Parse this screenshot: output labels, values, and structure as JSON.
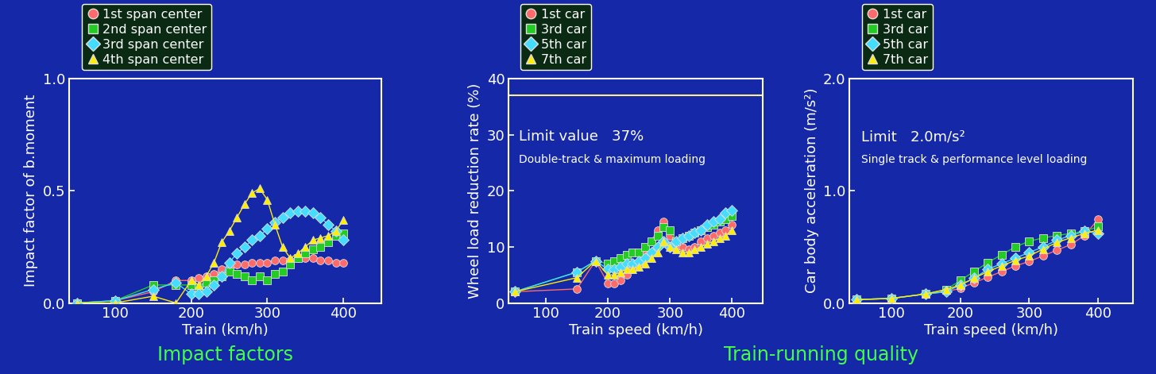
{
  "captions": [
    "Impact factors",
    "Train-running quality"
  ],
  "chart_data": [
    {
      "type": "line",
      "x_label": "Train (km/h)",
      "y_label": "Impact factor of b.moment",
      "x": [
        50,
        100,
        150,
        180,
        200,
        210,
        220,
        230,
        240,
        250,
        260,
        270,
        280,
        290,
        300,
        310,
        320,
        330,
        340,
        350,
        360,
        370,
        380,
        390,
        400
      ],
      "series": [
        {
          "name": "1st span center",
          "color": "#ff6a6a",
          "marker": "circle",
          "values": [
            0,
            0.01,
            0.05,
            0.1,
            0.1,
            0.11,
            0.12,
            0.13,
            0.15,
            0.16,
            0.17,
            0.17,
            0.18,
            0.18,
            0.18,
            0.19,
            0.19,
            0.19,
            0.2,
            0.2,
            0.2,
            0.19,
            0.19,
            0.18,
            0.18
          ]
        },
        {
          "name": "2nd span center",
          "color": "#22cc22",
          "marker": "square",
          "values": [
            0,
            0.01,
            0.08,
            0.08,
            0.08,
            0.07,
            0.09,
            0.1,
            0.12,
            0.14,
            0.13,
            0.12,
            0.1,
            0.12,
            0.1,
            0.13,
            0.14,
            0.17,
            0.2,
            0.22,
            0.24,
            0.25,
            0.27,
            0.3,
            0.31
          ]
        },
        {
          "name": "3rd span center",
          "color": "#44ddff",
          "marker": "diamond",
          "values": [
            0,
            0.01,
            0.06,
            0.09,
            0.04,
            0.04,
            0.05,
            0.08,
            0.12,
            0.18,
            0.22,
            0.25,
            0.28,
            0.3,
            0.33,
            0.36,
            0.38,
            0.4,
            0.41,
            0.41,
            0.4,
            0.38,
            0.35,
            0.32,
            0.28
          ]
        },
        {
          "name": "4th span center",
          "color": "#ffee00",
          "marker": "triangle",
          "values": [
            0,
            0.0,
            0.03,
            0.0,
            0.1,
            0.08,
            0.12,
            0.18,
            0.27,
            0.32,
            0.38,
            0.44,
            0.49,
            0.51,
            0.46,
            0.35,
            0.25,
            0.2,
            0.22,
            0.25,
            0.28,
            0.29,
            0.3,
            0.32,
            0.37
          ]
        }
      ],
      "xlim": [
        40,
        450
      ],
      "ylim": [
        0,
        1.0
      ],
      "xticks": [
        100,
        200,
        300,
        400
      ],
      "yticks": [
        {
          "value": 0,
          "label": "0.0"
        },
        {
          "value": 0.5,
          "label": "0.5"
        },
        {
          "value": 1.0,
          "label": "1.0"
        }
      ],
      "legend": "upper left"
    },
    {
      "type": "line",
      "x_label": "Train speed (km/h)",
      "y_label": "Wheel load reduction rate (%)",
      "x": [
        50,
        150,
        180,
        200,
        210,
        220,
        230,
        240,
        250,
        260,
        270,
        280,
        290,
        300,
        310,
        320,
        330,
        340,
        350,
        360,
        370,
        380,
        390,
        400
      ],
      "series": [
        {
          "name": "1st car",
          "color": "#ff6a6a",
          "marker": "circle",
          "values": [
            2,
            2.5,
            7.5,
            3.5,
            3.5,
            4,
            5,
            6,
            7,
            9,
            11,
            13,
            14.5,
            12,
            10,
            10,
            9.5,
            10,
            11,
            11.5,
            12,
            12.5,
            13,
            14
          ]
        },
        {
          "name": "3rd car",
          "color": "#22cc22",
          "marker": "square",
          "values": [
            2,
            5.5,
            7.5,
            7,
            7.5,
            8,
            8.5,
            9,
            9,
            10,
            11,
            12,
            13.5,
            13,
            11,
            11.5,
            12,
            12.5,
            13,
            13.5,
            14,
            14.5,
            15,
            15.5
          ]
        },
        {
          "name": "5th car",
          "color": "#44ddff",
          "marker": "diamond",
          "values": [
            2,
            5.5,
            7.5,
            6,
            6,
            6.5,
            7,
            7,
            7.5,
            8,
            9,
            10,
            11,
            10,
            11,
            11.5,
            12,
            12.5,
            13,
            14,
            14.5,
            15,
            16,
            16.5
          ]
        },
        {
          "name": "7th car",
          "color": "#ffee00",
          "marker": "triangle",
          "values": [
            2,
            4.5,
            7.5,
            5,
            5,
            5.5,
            6,
            6,
            6.5,
            7,
            8,
            9,
            11,
            10,
            9.5,
            9,
            9,
            9.5,
            10,
            10.5,
            11,
            11.5,
            12,
            13
          ]
        }
      ],
      "xlim": [
        40,
        450
      ],
      "ylim": [
        0,
        40
      ],
      "xticks": [
        100,
        200,
        300,
        400
      ],
      "yticks": [
        0,
        10,
        20,
        30,
        40
      ],
      "limit": 37,
      "annotations": [
        "Limit value   37%",
        "Double-track & maximum loading"
      ],
      "legend": "upper left"
    },
    {
      "type": "line",
      "x_label": "Train speed (km/h)",
      "y_label": "Car body acceleration (m/s²)",
      "x": [
        50,
        100,
        150,
        180,
        200,
        220,
        240,
        260,
        280,
        300,
        320,
        340,
        360,
        380,
        400
      ],
      "series": [
        {
          "name": "1st car",
          "color": "#ff6a6a",
          "marker": "circle",
          "values": [
            0.03,
            0.04,
            0.08,
            0.1,
            0.13,
            0.18,
            0.23,
            0.28,
            0.33,
            0.37,
            0.42,
            0.47,
            0.52,
            0.6,
            0.75
          ]
        },
        {
          "name": "3rd car",
          "color": "#22cc22",
          "marker": "square",
          "values": [
            0.03,
            0.04,
            0.08,
            0.12,
            0.2,
            0.28,
            0.36,
            0.43,
            0.5,
            0.55,
            0.58,
            0.6,
            0.62,
            0.64,
            0.68
          ]
        },
        {
          "name": "5th car",
          "color": "#44ddff",
          "marker": "diamond",
          "values": [
            0.03,
            0.04,
            0.08,
            0.1,
            0.16,
            0.22,
            0.3,
            0.35,
            0.4,
            0.45,
            0.5,
            0.56,
            0.6,
            0.64,
            0.62
          ]
        },
        {
          "name": "7th car",
          "color": "#ffee00",
          "marker": "triangle",
          "values": [
            0.03,
            0.04,
            0.08,
            0.12,
            0.16,
            0.22,
            0.28,
            0.33,
            0.38,
            0.42,
            0.48,
            0.54,
            0.58,
            0.62,
            0.65
          ]
        }
      ],
      "xlim": [
        40,
        450
      ],
      "ylim": [
        0,
        2.0
      ],
      "xticks": [
        100,
        200,
        300,
        400
      ],
      "yticks": [
        {
          "value": 0,
          "label": "0.0"
        },
        {
          "value": 1.0,
          "label": "1.0"
        },
        {
          "value": 2.0,
          "label": "2.0"
        }
      ],
      "limit": 2.0,
      "annotations": [
        "Limit   2.0m/s²",
        "Single track & performance level loading"
      ],
      "legend": "upper left"
    }
  ]
}
